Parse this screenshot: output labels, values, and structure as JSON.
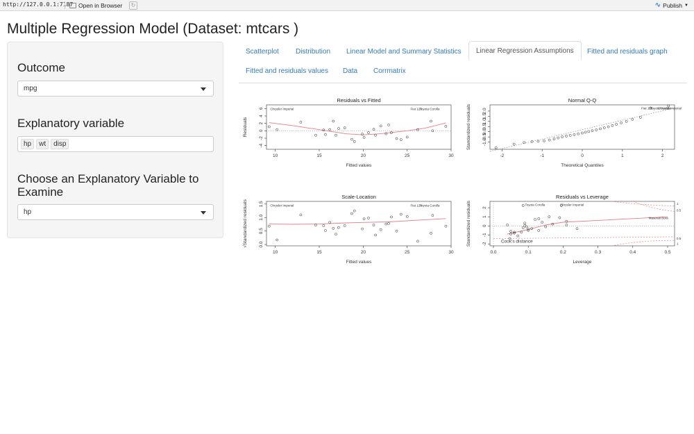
{
  "browser": {
    "url": "http://127.0.0.1:7187",
    "open_in_browser": "Open in Browser",
    "publish": "Publish"
  },
  "page_title": "Multiple Regression Model (Dataset: mtcars )",
  "sidebar": {
    "outcome_label": "Outcome",
    "outcome_value": "mpg",
    "explanatory_label": "Explanatory variable",
    "explanatory_values": [
      "hp",
      "wt",
      "disp"
    ],
    "examine_label": "Choose an Explanatory Variable to Examine",
    "examine_value": "hp"
  },
  "tabs": [
    {
      "label": "Scatterplot",
      "active": false
    },
    {
      "label": "Distribution",
      "active": false
    },
    {
      "label": "Linear Model and Summary Statistics",
      "active": false
    },
    {
      "label": "Linear Regression Assumptions",
      "active": true
    },
    {
      "label": "Fitted and residuals graph",
      "active": false
    },
    {
      "label": "Fitted and residuals values",
      "active": false
    },
    {
      "label": "Data",
      "active": false
    },
    {
      "label": "Corrmatrix",
      "active": false
    }
  ],
  "chart_data": [
    {
      "type": "scatter",
      "title": "Residuals vs Fitted",
      "xlabel": "Fitted values",
      "ylabel": "Residuals",
      "xlim": [
        9,
        30
      ],
      "ylim": [
        -5,
        7
      ],
      "xticks": [
        "10",
        "15",
        "20",
        "25",
        "30"
      ],
      "yticks": [
        "-4",
        "-2",
        "0",
        "2",
        "4",
        "6"
      ],
      "x": [
        9.3,
        10.2,
        12.9,
        14.6,
        15.5,
        15.7,
        16.2,
        16.6,
        16.9,
        17.2,
        17.9,
        18.7,
        19.0,
        19.9,
        20.1,
        20.6,
        21.2,
        21.4,
        22.0,
        22.6,
        22.9,
        23.2,
        23.8,
        24.3,
        25.0,
        26.2,
        27.7,
        27.9,
        29.4
      ],
      "y": [
        1.1,
        0.3,
        2.3,
        -1.2,
        0.2,
        -1.0,
        0.3,
        2.6,
        -1.2,
        0.6,
        0.8,
        -2.3,
        -2.9,
        -0.9,
        -1.8,
        -0.5,
        0.4,
        -1.2,
        1.3,
        -0.8,
        1.6,
        -0.5,
        -2.1,
        -2.4,
        -1.7,
        0.3,
        2.6,
        0.0,
        1.2
      ],
      "smoother": [
        [
          9.3,
          2.2
        ],
        [
          12,
          1.4
        ],
        [
          15,
          0.3
        ],
        [
          18,
          -0.8
        ],
        [
          20,
          -1.1
        ],
        [
          22,
          -0.8
        ],
        [
          25,
          0.0
        ],
        [
          27,
          0.7
        ],
        [
          29.4,
          2.1
        ]
      ],
      "labels": [
        "Chrysler Imperial",
        "Fiat 128",
        "Toyota Corolla"
      ]
    },
    {
      "type": "scatter",
      "title": "Normal Q-Q",
      "xlabel": "Theoretical Quantiles",
      "ylabel": "Standardized residuals",
      "xlim": [
        -2.3,
        2.3
      ],
      "ylim": [
        -1.7,
        2.6
      ],
      "xticks": [
        "-2",
        "-1",
        "0",
        "1",
        "2"
      ],
      "yticks": [
        "-1.0",
        "-0.5",
        "0.0",
        "0.5",
        "1.0",
        "1.5",
        "2.0"
      ],
      "x": [
        -2.15,
        -1.7,
        -1.45,
        -1.25,
        -1.1,
        -0.95,
        -0.82,
        -0.7,
        -0.6,
        -0.5,
        -0.4,
        -0.3,
        -0.2,
        -0.1,
        0.0,
        0.08,
        0.16,
        0.25,
        0.35,
        0.45,
        0.55,
        0.65,
        0.75,
        0.85,
        0.97,
        1.1,
        1.25,
        1.45,
        1.7,
        2.15
      ],
      "y": [
        -1.55,
        -1.2,
        -1.05,
        -0.95,
        -0.92,
        -0.88,
        -0.8,
        -0.7,
        -0.6,
        -0.5,
        -0.42,
        -0.35,
        -0.28,
        -0.2,
        -0.12,
        -0.05,
        0.02,
        0.1,
        0.18,
        0.28,
        0.38,
        0.48,
        0.6,
        0.72,
        0.86,
        1.0,
        1.2,
        1.4,
        2.3,
        2.5
      ],
      "ref_line": [
        [
          -2.3,
          -1.9
        ],
        [
          2.3,
          2.3
        ]
      ],
      "labels": [
        "Fiat 128",
        "Toyota Corolla",
        "Chrysler Imperial"
      ]
    },
    {
      "type": "scatter",
      "title": "Scale-Location",
      "xlabel": "Fitted values",
      "ylabel": "√Standardized residuals",
      "xlim": [
        9,
        30
      ],
      "ylim": [
        -0.05,
        1.6
      ],
      "xticks": [
        "10",
        "15",
        "20",
        "25",
        "30"
      ],
      "yticks": [
        "0.0",
        "0.5",
        "1.0",
        "1.5"
      ],
      "x": [
        9.3,
        10.2,
        12.9,
        14.6,
        15.5,
        15.7,
        16.2,
        16.6,
        16.9,
        17.2,
        17.9,
        18.7,
        19.0,
        19.9,
        20.1,
        20.6,
        21.2,
        21.4,
        22.0,
        22.6,
        22.9,
        23.2,
        23.8,
        24.3,
        25.0,
        26.2,
        27.7,
        27.9,
        29.4
      ],
      "y": [
        0.68,
        0.17,
        1.1,
        0.72,
        0.7,
        0.52,
        0.82,
        0.6,
        0.38,
        0.63,
        0.7,
        1.15,
        1.25,
        0.58,
        0.95,
        0.98,
        0.72,
        0.35,
        0.55,
        0.76,
        0.78,
        1.02,
        0.5,
        1.12,
        1.04,
        0.12,
        0.42,
        1.08,
        0.68
      ],
      "smoother": [
        [
          9.3,
          0.76
        ],
        [
          12,
          0.75
        ],
        [
          15,
          0.76
        ],
        [
          18,
          0.8
        ],
        [
          20,
          0.82
        ],
        [
          23,
          0.84
        ],
        [
          26,
          0.9
        ],
        [
          29.4,
          0.96
        ]
      ],
      "labels": [
        "Chrysler Imperial",
        "Fiat 128",
        "Toyota Corolla"
      ]
    },
    {
      "type": "scatter",
      "title": "Residuals vs Leverage",
      "xlabel": "Leverage",
      "ylabel": "Standardized residuals",
      "xlim": [
        -0.01,
        0.52
      ],
      "ylim": [
        -2.2,
        2.7
      ],
      "xticks": [
        "0.0",
        "0.1",
        "0.2",
        "0.3",
        "0.4",
        "0.5"
      ],
      "yticks": [
        "-2",
        "-1",
        "0",
        "1",
        "2"
      ],
      "x": [
        0.04,
        0.05,
        0.06,
        0.07,
        0.08,
        0.085,
        0.09,
        0.095,
        0.1,
        0.11,
        0.12,
        0.13,
        0.14,
        0.15,
        0.16,
        0.17,
        0.19,
        0.21,
        0.24,
        0.05,
        0.06,
        0.09,
        0.1,
        0.13,
        0.085,
        0.195,
        0.21,
        0.047
      ],
      "y": [
        0.1,
        -0.6,
        -0.8,
        -1.1,
        -0.7,
        -0.2,
        0.3,
        -0.1,
        -0.5,
        -0.3,
        0.7,
        -0.5,
        0.4,
        -0.1,
        1.0,
        0.2,
        0.9,
        0.5,
        -0.3,
        -0.9,
        -0.7,
        0.05,
        -0.35,
        0.8,
        2.25,
        2.25,
        0.1,
        -1.4
      ],
      "smoother": [
        [
          0.04,
          -0.9
        ],
        [
          0.1,
          -0.4
        ],
        [
          0.15,
          0.1
        ],
        [
          0.2,
          0.4
        ],
        [
          0.3,
          0.6
        ],
        [
          0.4,
          0.8
        ],
        [
          0.5,
          1.0
        ]
      ],
      "labels": [
        "Toyota Corolla",
        "Chrysler Imperial",
        "Maserati Bora",
        "Cook's distance"
      ],
      "contour_labels": [
        "1",
        "0.5",
        "0.5",
        "1"
      ]
    }
  ]
}
